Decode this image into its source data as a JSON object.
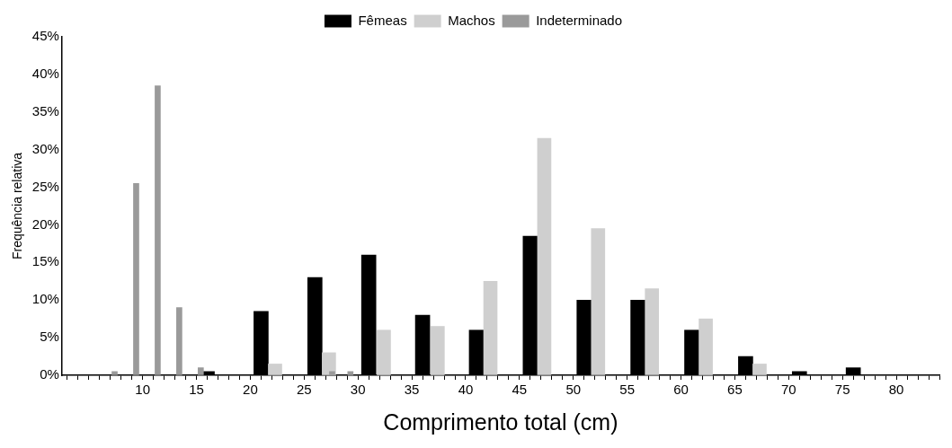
{
  "chart_data": {
    "type": "bar",
    "xlabel": "Comprimento total (cm)",
    "ylabel": "Frequência relativa",
    "series": [
      {
        "name": "Fêmeas",
        "color": "#000000",
        "x": [
          16,
          21,
          26,
          31,
          36,
          41,
          46,
          51,
          56,
          61,
          66,
          71,
          76
        ],
        "values": [
          0.5,
          8.5,
          13,
          16,
          8,
          6,
          18.5,
          10,
          10,
          6,
          2.5,
          0.5,
          1
        ]
      },
      {
        "name": "Machos",
        "color": "#cfcfcf",
        "x": [
          22.3,
          27.3,
          32.4,
          37.4,
          42.3,
          47.3,
          52.3,
          57.3,
          62.3,
          67.3
        ],
        "values": [
          1.5,
          3,
          6,
          6.5,
          12.5,
          31.5,
          19.5,
          11.5,
          7.5,
          1.5
        ]
      },
      {
        "name": "Indeterminado",
        "color": "#9a9a9a",
        "x": [
          7.4,
          9.4,
          11.4,
          13.4,
          15.4,
          27.6,
          29.3
        ],
        "values": [
          0.5,
          25.5,
          38.5,
          9,
          1,
          0.5,
          0.5
        ]
      }
    ],
    "xlim": [
      2.5,
      84
    ],
    "xticks": [
      {
        "value": 3,
        "label": null
      },
      {
        "value": 4,
        "label": null
      },
      {
        "value": 5,
        "label": null
      },
      {
        "value": 6,
        "label": null
      },
      {
        "value": 7,
        "label": null
      },
      {
        "value": 8,
        "label": null
      },
      {
        "value": 9,
        "label": null
      },
      10,
      {
        "value": 11,
        "label": null
      },
      {
        "value": 12,
        "label": null
      },
      {
        "value": 13,
        "label": null
      },
      {
        "value": 14,
        "label": null
      },
      15,
      {
        "value": 16,
        "label": null
      },
      {
        "value": 17,
        "label": null
      },
      {
        "value": 18,
        "label": null
      },
      {
        "value": 19,
        "label": null
      },
      20,
      {
        "value": 21,
        "label": null
      },
      {
        "value": 22,
        "label": null
      },
      {
        "value": 23,
        "label": null
      },
      {
        "value": 24,
        "label": null
      },
      25,
      {
        "value": 26,
        "label": null
      },
      {
        "value": 27,
        "label": null
      },
      {
        "value": 28,
        "label": null
      },
      {
        "value": 29,
        "label": null
      },
      30,
      {
        "value": 31,
        "label": null
      },
      {
        "value": 32,
        "label": null
      },
      {
        "value": 33,
        "label": null
      },
      {
        "value": 34,
        "label": null
      },
      35,
      {
        "value": 36,
        "label": null
      },
      {
        "value": 37,
        "label": null
      },
      {
        "value": 38,
        "label": null
      },
      {
        "value": 39,
        "label": null
      },
      40,
      {
        "value": 41,
        "label": null
      },
      {
        "value": 42,
        "label": null
      },
      {
        "value": 43,
        "label": null
      },
      {
        "value": 44,
        "label": null
      },
      45,
      {
        "value": 46,
        "label": null
      },
      {
        "value": 47,
        "label": null
      },
      {
        "value": 48,
        "label": null
      },
      {
        "value": 49,
        "label": null
      },
      50,
      {
        "value": 51,
        "label": null
      },
      {
        "value": 52,
        "label": null
      },
      {
        "value": 53,
        "label": null
      },
      {
        "value": 54,
        "label": null
      },
      55,
      {
        "value": 56,
        "label": null
      },
      {
        "value": 57,
        "label": null
      },
      {
        "value": 58,
        "label": null
      },
      {
        "value": 59,
        "label": null
      },
      60,
      {
        "value": 61,
        "label": null
      },
      {
        "value": 62,
        "label": null
      },
      {
        "value": 63,
        "label": null
      },
      {
        "value": 64,
        "label": null
      },
      65,
      {
        "value": 66,
        "label": null
      },
      {
        "value": 67,
        "label": null
      },
      {
        "value": 68,
        "label": null
      },
      {
        "value": 69,
        "label": null
      },
      70,
      {
        "value": 71,
        "label": null
      },
      {
        "value": 72,
        "label": null
      },
      {
        "value": 73,
        "label": null
      },
      {
        "value": 74,
        "label": null
      },
      75,
      {
        "value": 76,
        "label": null
      },
      {
        "value": 77,
        "label": null
      },
      {
        "value": 78,
        "label": null
      },
      {
        "value": 79,
        "label": null
      },
      80,
      {
        "value": 81,
        "label": null
      },
      {
        "value": 82,
        "label": null
      },
      {
        "value": 83,
        "label": null
      },
      {
        "value": 84,
        "label": null
      }
    ],
    "ylim": [
      0,
      45
    ],
    "yticks": [
      {
        "value": 0,
        "label": "0%"
      },
      {
        "value": 5,
        "label": "5%"
      },
      {
        "value": 10,
        "label": "10%"
      },
      {
        "value": 15,
        "label": "15%"
      },
      {
        "value": 20,
        "label": "20%"
      },
      {
        "value": 25,
        "label": "25%"
      },
      {
        "value": 30,
        "label": "30%"
      },
      {
        "value": 35,
        "label": "35%"
      },
      {
        "value": 40,
        "label": "40%"
      },
      {
        "value": 45,
        "label": "45%"
      }
    ],
    "grid": false,
    "legend": "top"
  }
}
